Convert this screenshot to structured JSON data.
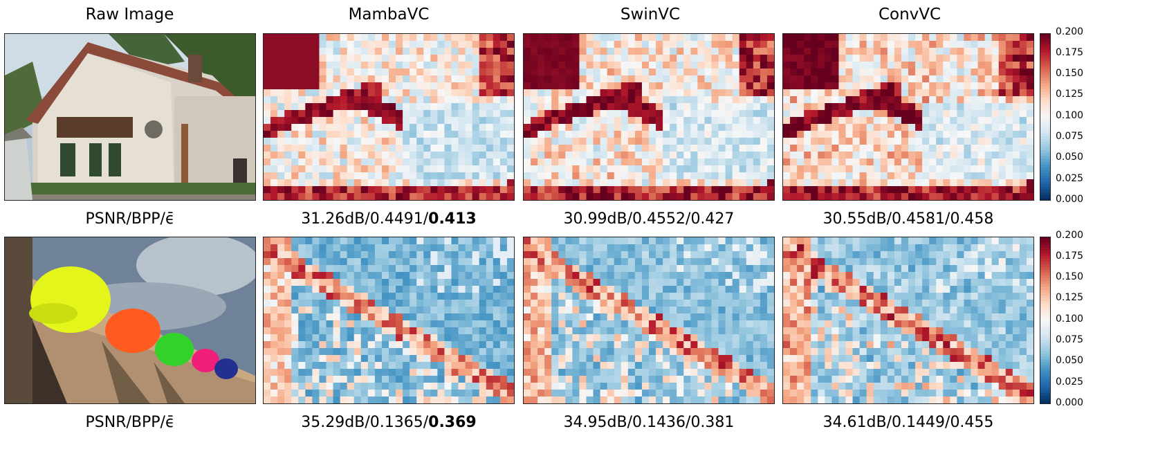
{
  "columns": [
    "Raw Image",
    "MambaVC",
    "SwinVC",
    "ConvVC"
  ],
  "rows": [
    {
      "metric_label": "PSNR/BPP/ϵ̄",
      "results": [
        {
          "model": "MambaVC",
          "psnr": "31.26dB",
          "bpp": "0.4491",
          "error": "0.413",
          "best": true
        },
        {
          "model": "SwinVC",
          "psnr": "30.99dB",
          "bpp": "0.4552",
          "error": "0.427",
          "best": false
        },
        {
          "model": "ConvVC",
          "psnr": "30.55dB",
          "bpp": "0.4581",
          "error": "0.458",
          "best": false
        }
      ]
    },
    {
      "metric_label": "PSNR/BPP/ϵ̄",
      "results": [
        {
          "model": "MambaVC",
          "psnr": "35.29dB",
          "bpp": "0.1365",
          "error": "0.369",
          "best": true
        },
        {
          "model": "SwinVC",
          "psnr": "34.95dB",
          "bpp": "0.1436",
          "error": "0.381",
          "best": false
        },
        {
          "model": "ConvVC",
          "psnr": "34.61dB",
          "bpp": "0.1449",
          "error": "0.455",
          "best": false
        }
      ]
    }
  ],
  "colorbar": {
    "ticks": [
      "0.200",
      "0.175",
      "0.150",
      "0.125",
      "0.100",
      "0.075",
      "0.050",
      "0.025",
      "0.000"
    ],
    "colors": [
      "#053061",
      "#2166ac",
      "#4393c3",
      "#92c5de",
      "#d1e5f0",
      "#f7f7f7",
      "#fddbc7",
      "#f4a582",
      "#d6604d",
      "#b2182b",
      "#67001f"
    ],
    "range": [
      0.0,
      0.2
    ]
  }
}
